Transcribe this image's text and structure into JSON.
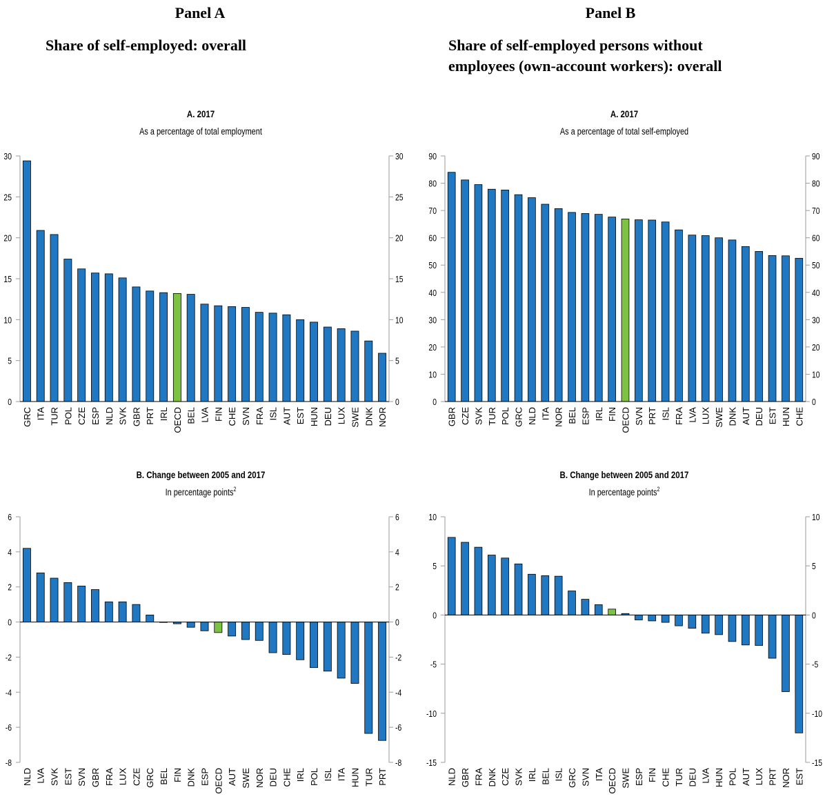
{
  "panels": [
    {
      "label": "Panel A",
      "heading": "Share of self-employed: overall"
    },
    {
      "label": "Panel B",
      "heading_line1": "Share of self-employed persons without",
      "heading_line2": "employees (own-account workers): overall"
    }
  ],
  "colors": {
    "bar": "#1f78c1",
    "highlight": "#7dc242",
    "bar_stroke": "#000000",
    "axis": "#9a9a9a"
  },
  "chart_data": [
    {
      "type": "bar",
      "title": "A. 2017",
      "subtitle": "As a percentage of total employment",
      "ylim": [
        0,
        30
      ],
      "yticks": [
        0,
        5,
        10,
        15,
        20,
        25,
        30
      ],
      "highlight": "OECD",
      "categories": [
        "GRC",
        "ITA",
        "TUR",
        "POL",
        "CZE",
        "ESP",
        "NLD",
        "SVK",
        "GBR",
        "PRT",
        "IRL",
        "OECD",
        "BEL",
        "LVA",
        "FIN",
        "CHE",
        "SVN",
        "FRA",
        "ISL",
        "AUT",
        "EST",
        "HUN",
        "DEU",
        "LUX",
        "SWE",
        "DNK",
        "NOR"
      ],
      "values": [
        29.4,
        20.9,
        20.4,
        17.4,
        16.2,
        15.7,
        15.6,
        15.1,
        14.0,
        13.5,
        13.3,
        13.2,
        13.1,
        11.9,
        11.7,
        11.6,
        11.5,
        10.9,
        10.8,
        10.6,
        10.0,
        9.7,
        9.1,
        8.9,
        8.6,
        7.4,
        5.9
      ]
    },
    {
      "type": "bar",
      "title": "A. 2017",
      "subtitle": "As a percentage of total self-employed",
      "ylim": [
        0,
        90
      ],
      "yticks": [
        0,
        10,
        20,
        30,
        40,
        50,
        60,
        70,
        80,
        90
      ],
      "highlight": "OECD",
      "categories": [
        "GBR",
        "CZE",
        "SVK",
        "TUR",
        "POL",
        "GRC",
        "NLD",
        "ITA",
        "NOR",
        "BEL",
        "ESP",
        "IRL",
        "FIN",
        "OECD",
        "SVN",
        "PRT",
        "ISL",
        "FRA",
        "LVA",
        "LUX",
        "SWE",
        "DNK",
        "AUT",
        "DEU",
        "EST",
        "HUN",
        "CHE"
      ],
      "values": [
        84.0,
        81.2,
        79.5,
        77.8,
        77.5,
        75.8,
        74.7,
        72.3,
        70.7,
        69.3,
        68.9,
        68.6,
        67.6,
        66.9,
        66.6,
        66.5,
        65.8,
        62.9,
        61.0,
        60.8,
        60.0,
        59.2,
        56.8,
        55.0,
        53.5,
        53.4,
        52.5
      ]
    },
    {
      "type": "bar",
      "title": "B. Change between 2005 and 2017",
      "subtitle": "In percentage points",
      "subtitle_sup": "2",
      "ylim": [
        -8,
        6
      ],
      "yticks": [
        -8,
        -6,
        -4,
        -2,
        0,
        2,
        4,
        6
      ],
      "highlight": "OECD",
      "categories": [
        "NLD",
        "LVA",
        "SVK",
        "EST",
        "SVN",
        "GBR",
        "FRA",
        "LUX",
        "CZE",
        "GRC",
        "BEL",
        "FIN",
        "DNK",
        "ESP",
        "OECD",
        "AUT",
        "SWE",
        "NOR",
        "DEU",
        "CHE",
        "IRL",
        "POL",
        "ISL",
        "ITA",
        "HUN",
        "TUR",
        "PRT"
      ],
      "values": [
        4.2,
        2.8,
        2.5,
        2.25,
        2.05,
        1.85,
        1.15,
        1.15,
        1.0,
        0.4,
        0.0,
        -0.1,
        -0.3,
        -0.5,
        -0.6,
        -0.8,
        -1.0,
        -1.05,
        -1.75,
        -1.85,
        -2.15,
        -2.6,
        -2.8,
        -3.2,
        -3.5,
        -6.35,
        -6.75
      ]
    },
    {
      "type": "bar",
      "title": "B. Change between 2005 and 2017",
      "subtitle": "In percentage points",
      "subtitle_sup": "2",
      "ylim": [
        -15,
        10
      ],
      "yticks": [
        -15,
        -10,
        -5,
        0,
        5,
        10
      ],
      "highlight": "OECD",
      "categories": [
        "NLD",
        "GBR",
        "FRA",
        "DNK",
        "CZE",
        "SVK",
        "IRL",
        "BEL",
        "ISL",
        "GRC",
        "SVN",
        "ITA",
        "OECD",
        "SWE",
        "ESP",
        "FIN",
        "CHE",
        "TUR",
        "DEU",
        "LVA",
        "HUN",
        "POL",
        "AUT",
        "LUX",
        "PRT",
        "NOR",
        "EST"
      ],
      "values": [
        7.9,
        7.4,
        6.9,
        6.1,
        5.8,
        5.2,
        4.15,
        4.0,
        3.95,
        2.45,
        1.6,
        1.05,
        0.6,
        0.15,
        -0.5,
        -0.6,
        -0.75,
        -1.1,
        -1.35,
        -1.85,
        -2.0,
        -2.7,
        -3.05,
        -3.1,
        -4.4,
        -7.8,
        -12.0
      ]
    }
  ]
}
